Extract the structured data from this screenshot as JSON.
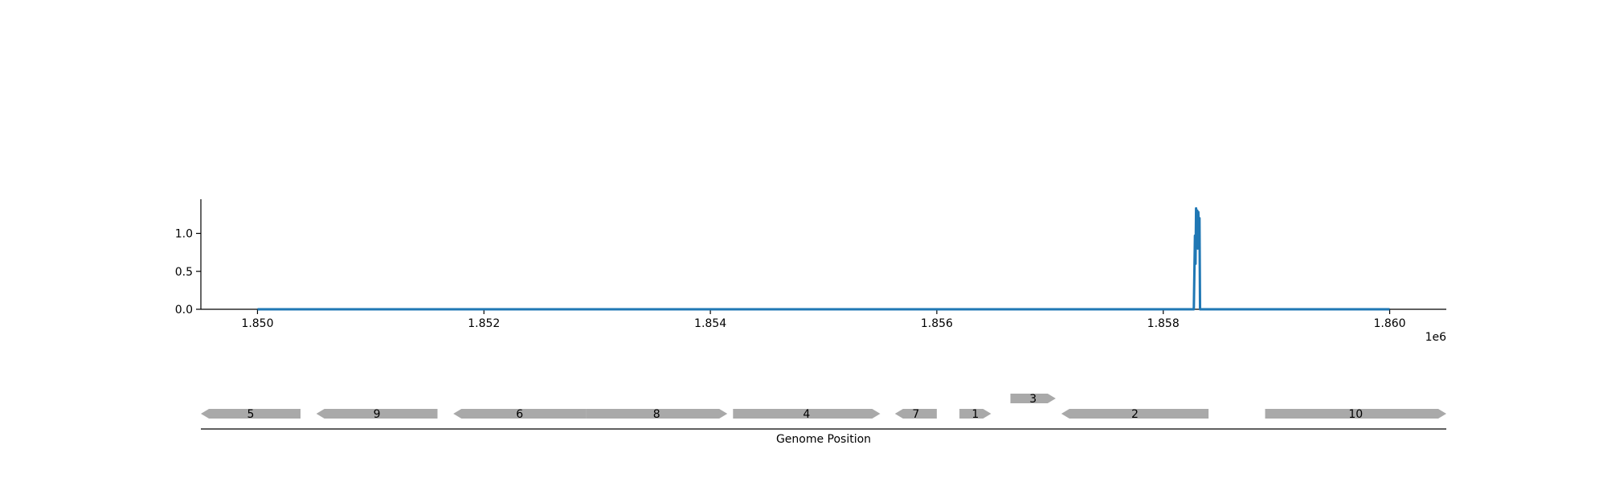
{
  "chart_data": [
    {
      "type": "line",
      "x_multiplier_label": "1e6",
      "xlim": [
        1849500,
        1860500
      ],
      "ylim": [
        0,
        1.45
      ],
      "x_ticks": [
        1850000,
        1852000,
        1854000,
        1856000,
        1858000,
        1860000
      ],
      "x_tick_labels": [
        "1.850",
        "1.852",
        "1.854",
        "1.856",
        "1.858",
        "1.860"
      ],
      "y_ticks": [
        0.0,
        0.5,
        1.0
      ],
      "y_tick_labels": [
        "0.0",
        "0.5",
        "1.0"
      ],
      "grid": false,
      "series": [
        {
          "color": "#1f77b4",
          "x": [
            1850000,
            1858270,
            1858280,
            1858285,
            1858290,
            1858295,
            1858300,
            1858305,
            1858310,
            1858315,
            1858320,
            1858325,
            1860000
          ],
          "y": [
            0,
            0,
            0.97,
            0.6,
            1.33,
            0.9,
            1.3,
            0.8,
            1.28,
            1.0,
            1.2,
            0,
            0
          ]
        }
      ]
    },
    {
      "type": "gene-track",
      "xlabel": "Genome Position",
      "genes": [
        {
          "label": "5",
          "start": 1849500,
          "end": 1850380,
          "strand": -1,
          "row": 0
        },
        {
          "label": "9",
          "start": 1850520,
          "end": 1851590,
          "strand": -1,
          "row": 0
        },
        {
          "label": "6",
          "start": 1851730,
          "end": 1852900,
          "strand": -1,
          "row": 0
        },
        {
          "label": "8",
          "start": 1852900,
          "end": 1854150,
          "strand": 1,
          "row": 0
        },
        {
          "label": "4",
          "start": 1854200,
          "end": 1855500,
          "strand": 1,
          "row": 0
        },
        {
          "label": "7",
          "start": 1855630,
          "end": 1856000,
          "strand": -1,
          "row": 0
        },
        {
          "label": "1",
          "start": 1856200,
          "end": 1856480,
          "strand": 1,
          "row": 0
        },
        {
          "label": "3",
          "start": 1856650,
          "end": 1857050,
          "strand": 1,
          "row": 1
        },
        {
          "label": "2",
          "start": 1857100,
          "end": 1858400,
          "strand": -1,
          "row": 0
        },
        {
          "label": "10",
          "start": 1858900,
          "end": 1860500,
          "strand": 1,
          "row": 0
        }
      ],
      "gene_color": "#a9a9a9"
    }
  ]
}
